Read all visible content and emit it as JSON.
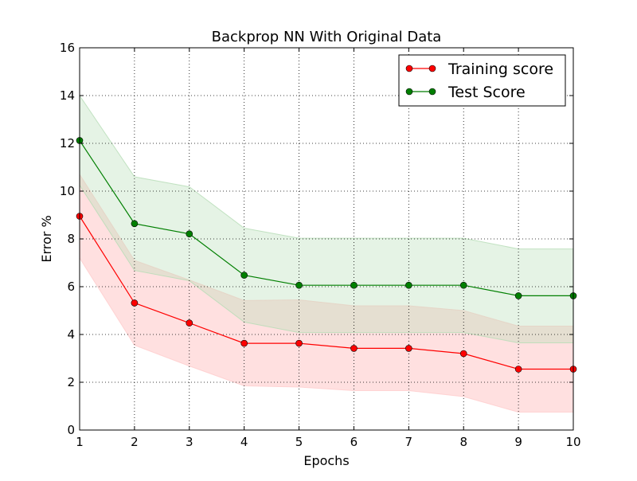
{
  "chart_data": {
    "type": "line",
    "title": "Backprop NN With Original Data",
    "xlabel": "Epochs",
    "ylabel": "Error %",
    "xlim": [
      1,
      10
    ],
    "ylim": [
      0,
      16
    ],
    "xticks": [
      1,
      2,
      3,
      4,
      5,
      6,
      7,
      8,
      9,
      10
    ],
    "yticks": [
      0,
      2,
      4,
      6,
      8,
      10,
      12,
      14,
      16
    ],
    "x": [
      1,
      2,
      3,
      4,
      5,
      6,
      7,
      8,
      9,
      10
    ],
    "grid": true,
    "legend_position": "top-right",
    "series": [
      {
        "name": "Training score",
        "color": "#ff0000",
        "band_color": "#ffcccc",
        "values": [
          8.95,
          5.32,
          4.48,
          3.63,
          3.63,
          3.42,
          3.42,
          3.2,
          2.55,
          2.55
        ],
        "band_lower": [
          7.2,
          3.55,
          2.68,
          1.85,
          1.8,
          1.65,
          1.65,
          1.4,
          0.75,
          0.75
        ],
        "band_upper": [
          10.7,
          7.1,
          6.28,
          5.42,
          5.45,
          5.2,
          5.2,
          5.0,
          4.35,
          4.35
        ]
      },
      {
        "name": "Test Score",
        "color": "#007f00",
        "band_color": "#b5dcb5",
        "values": [
          12.12,
          8.64,
          8.21,
          6.48,
          6.06,
          6.06,
          6.06,
          6.06,
          5.62,
          5.62
        ],
        "band_lower": [
          10.25,
          6.68,
          6.25,
          4.52,
          4.08,
          4.08,
          4.08,
          4.08,
          3.65,
          3.65
        ],
        "band_upper": [
          14.0,
          10.6,
          10.18,
          8.45,
          8.03,
          8.03,
          8.03,
          8.03,
          7.58,
          7.58
        ]
      }
    ]
  }
}
